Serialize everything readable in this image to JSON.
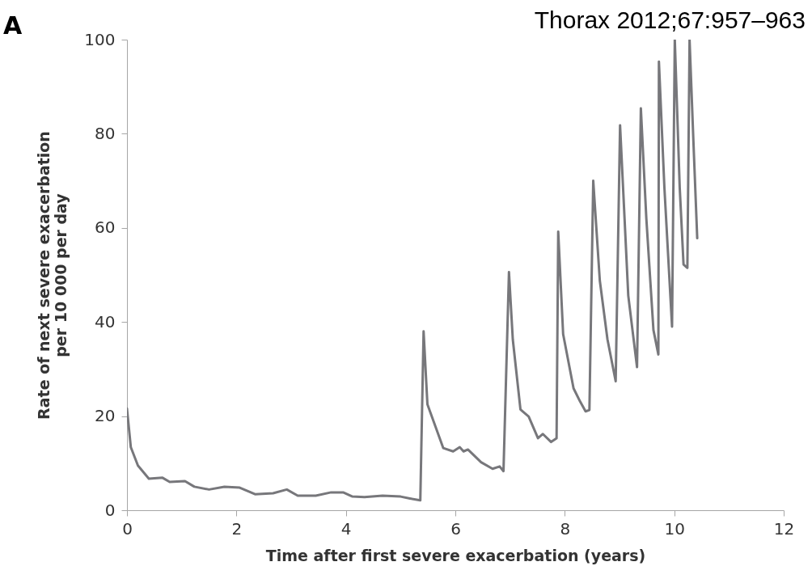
{
  "chart_data": {
    "type": "line",
    "xlabel": "Time after first severe exacerbation (years)",
    "ylabel": "Rate of next severe exacerbation\nper 10 000 per day",
    "annotations": [
      "A",
      "Thorax 2012;67:957–963"
    ],
    "xlim": [
      0,
      12
    ],
    "xticks": [
      0,
      2,
      4,
      6,
      8,
      10,
      12
    ],
    "ylim": [
      0,
      100
    ],
    "yticks": [
      0,
      20,
      40,
      60,
      80,
      100
    ],
    "grid": false,
    "marker": "none",
    "line_style": "solid",
    "series": [
      {
        "color": "#77777b",
        "x": [
          0,
          0.07,
          0.2,
          0.4,
          0.65,
          0.78,
          1.06,
          1.23,
          1.5,
          1.78,
          2.06,
          2.34,
          2.67,
          2.92,
          3.12,
          3.45,
          3.73,
          3.95,
          4.12,
          4.34,
          4.67,
          5.0,
          5.17,
          5.36,
          5.42,
          5.49,
          5.78,
          5.96,
          6.08,
          6.15,
          6.23,
          6.47,
          6.68,
          6.81,
          6.88,
          6.98,
          7.05,
          7.19,
          7.34,
          7.51,
          7.6,
          7.75,
          7.85,
          7.88,
          7.97,
          8.16,
          8.28,
          8.38,
          8.45,
          8.52,
          8.64,
          8.78,
          8.93,
          9.01,
          9.16,
          9.32,
          9.39,
          9.49,
          9.62,
          9.71,
          9.72,
          9.82,
          9.96,
          10.01,
          10.1,
          10.17,
          10.24,
          10.28,
          10.35,
          10.42
        ],
        "values": [
          21.6,
          13.4,
          9.5,
          6.7,
          6.9,
          6.0,
          6.2,
          5.0,
          4.4,
          5.0,
          4.8,
          3.4,
          3.6,
          4.4,
          3.1,
          3.1,
          3.8,
          3.8,
          2.9,
          2.8,
          3.1,
          2.9,
          2.5,
          2.1,
          38.0,
          22.5,
          13.2,
          12.5,
          13.4,
          12.5,
          12.9,
          10.2,
          8.8,
          9.3,
          8.3,
          50.6,
          36.3,
          21.4,
          19.9,
          15.3,
          16.2,
          14.5,
          15.3,
          59.2,
          37.4,
          25.9,
          23.1,
          21.0,
          21.3,
          70.0,
          48.8,
          36.3,
          27.4,
          81.8,
          45.6,
          30.4,
          85.4,
          62.0,
          38.3,
          33.1,
          95.3,
          68.6,
          39.0,
          100,
          68.6,
          52.2,
          51.5,
          100,
          78.5,
          57.8
        ]
      }
    ]
  }
}
